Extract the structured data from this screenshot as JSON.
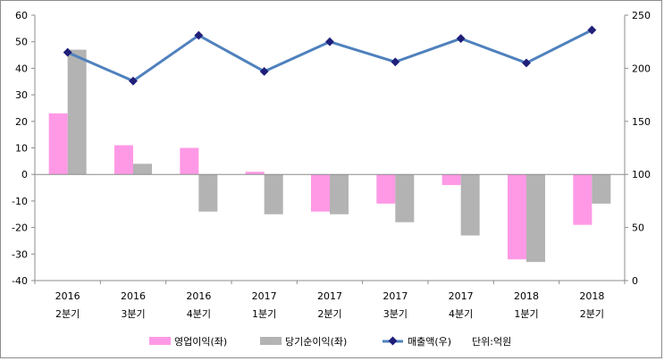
{
  "chart_data": {
    "type": "bar",
    "categories": [
      {
        "year": "2016",
        "quarter": "2분기"
      },
      {
        "year": "2016",
        "quarter": "3분기"
      },
      {
        "year": "2016",
        "quarter": "4분기"
      },
      {
        "year": "2017",
        "quarter": "1분기"
      },
      {
        "year": "2017",
        "quarter": "2분기"
      },
      {
        "year": "2017",
        "quarter": "3분기"
      },
      {
        "year": "2017",
        "quarter": "4분기"
      },
      {
        "year": "2018",
        "quarter": "1분기"
      },
      {
        "year": "2018",
        "quarter": "2분기"
      }
    ],
    "series": [
      {
        "name": "영업이익(좌)",
        "type": "bar",
        "axis": "left",
        "color": "#ff99e6",
        "values": [
          23,
          11,
          10,
          1,
          -14,
          -11,
          -4,
          -32,
          -19
        ]
      },
      {
        "name": "당기순이익(좌)",
        "type": "bar",
        "axis": "left",
        "color": "#b3b3b3",
        "values": [
          47,
          4,
          -14,
          -15,
          -15,
          -18,
          -23,
          -33,
          -11
        ]
      },
      {
        "name": "매출액(우)",
        "type": "line",
        "axis": "right",
        "color": "#4f81bd",
        "marker_color": "#1f1f7a",
        "values": [
          215,
          188,
          231,
          197,
          225,
          206,
          228,
          205,
          236
        ]
      }
    ],
    "left_axis": {
      "min": -40,
      "max": 60,
      "step": 10
    },
    "right_axis": {
      "min": 0,
      "max": 250,
      "step": 50
    },
    "unit_note": "단위:억원",
    "legend_position": "bottom"
  }
}
